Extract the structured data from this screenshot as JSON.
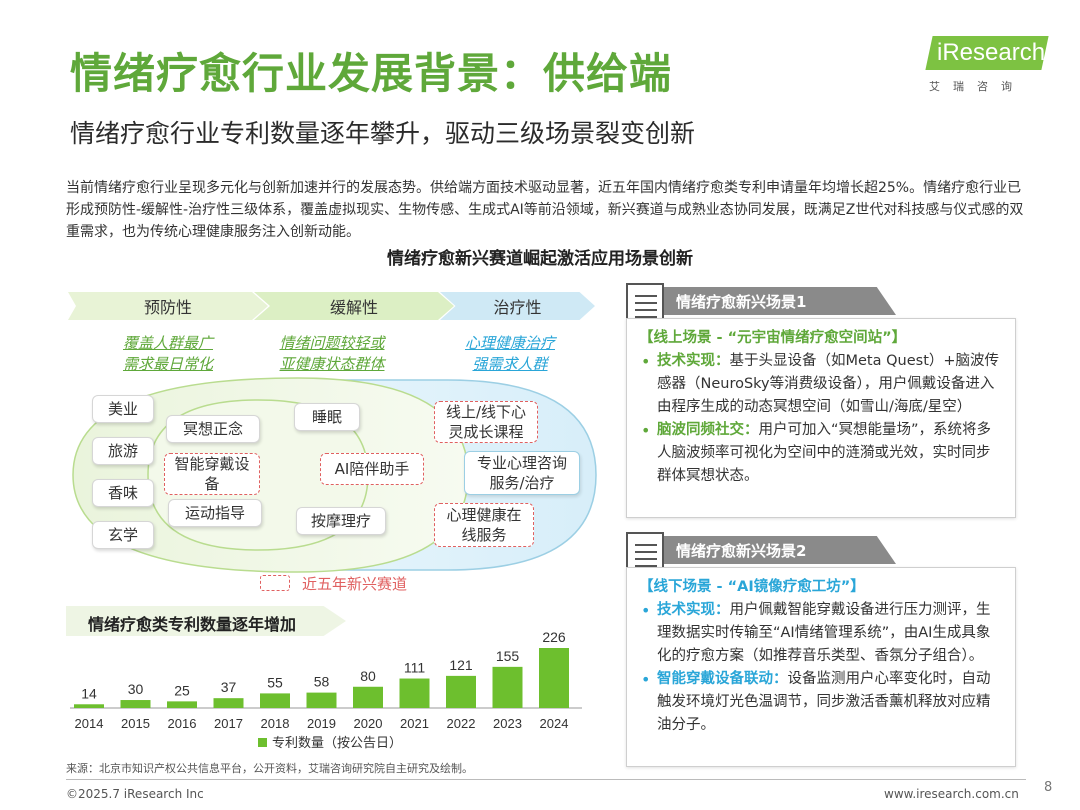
{
  "header": {
    "title": "情绪疗愈行业发展背景：供给端",
    "subtitle": "情绪疗愈行业专利数量逐年攀升，驱动三级场景裂变创新",
    "logo_text": "iResearch",
    "logo_sub": "艾瑞咨询"
  },
  "intro": {
    "paragraph": "当前情绪疗愈行业呈现多元化与创新加速并行的发展态势。供给端方面技术驱动显著，近五年国内情绪疗愈类专利申请量年均增长超25%。情绪疗愈行业已形成预防性-缓解性-治疗性三级体系，覆盖虚拟现实、生物传感、生成式AI等前沿领域，新兴赛道与成熟业态协同发展，既满足Z世代对科技感与仪式感的双重需求，也为传统心理健康服务注入创新动能。"
  },
  "diagram": {
    "heading": "情绪疗愈新兴赛道崛起激活应用场景创新",
    "phases": [
      {
        "name": "预防性",
        "desc1": "覆盖人群最广",
        "desc2": "需求最日常化"
      },
      {
        "name": "缓解性",
        "desc1": "情绪问题较轻或",
        "desc2": "亚健康状态群体"
      },
      {
        "name": "治疗性",
        "desc1": "心理健康治疗",
        "desc2": "强需求人群"
      }
    ],
    "outer_items": [
      "美业",
      "旅游",
      "香味",
      "玄学"
    ],
    "inner_items": [
      "冥想正念",
      "智能穿戴设备",
      "运动指导"
    ],
    "relief_items": [
      "睡眠",
      "AI陪伴助手",
      "按摩理疗"
    ],
    "therapy_items": [
      "线上/线下心灵成长课程",
      "专业心理咨询服务/治疗",
      "心理健康在线服务"
    ],
    "legend": "近五年新兴赛道",
    "colors": {
      "green": "#5fa83a",
      "blue": "#2aa6d8",
      "dashed_red": "#e06060",
      "bar": "#6dbf2e"
    }
  },
  "chart_data": {
    "type": "bar",
    "title": "情绪疗愈类专利数量逐年增加",
    "categories": [
      "2014",
      "2015",
      "2016",
      "2017",
      "2018",
      "2019",
      "2020",
      "2021",
      "2022",
      "2023",
      "2024"
    ],
    "series": [
      {
        "name": "专利数量（按公告日）",
        "values": [
          14,
          30,
          25,
          37,
          55,
          58,
          80,
          111,
          121,
          155,
          226
        ]
      }
    ],
    "xlabel": "",
    "ylabel": "",
    "legend": "bottom",
    "grid": false
  },
  "scenes": [
    {
      "tab": "情绪疗愈新兴场景1",
      "heading": "【线上场景 - “元宇宙情绪疗愈空间站”】",
      "b1_kw": "技术实现：",
      "b1_text": "基于头显设备（如Meta Quest）+脑波传感器（NeuroSky等消费级设备），用户佩戴设备进入由程序生成的动态冥想空间（如雪山/海底/星空）",
      "b2_kw": "脑波同频社交：",
      "b2_text": "用户可加入“冥想能量场”，系统将多人脑波频率可视化为空间中的涟漪或光效，实时同步群体冥想状态。"
    },
    {
      "tab": "情绪疗愈新兴场景2",
      "heading": "【线下场景 - “AI镜像疗愈工坊”】",
      "b1_kw": "技术实现：",
      "b1_text": "用户佩戴智能穿戴设备进行压力测评，生理数据实时传输至“AI情绪管理系统”，由AI生成具象化的疗愈方案（如推荐音乐类型、香氛分子组合）。",
      "b2_kw": "智能穿戴设备联动：",
      "b2_text": "设备监测用户心率变化时，自动触发环境灯光色温调节，同步激活香薰机释放对应精油分子。"
    }
  ],
  "footer": {
    "source": "来源：北京市知识产权公共信息平台，公开资料，艾瑞咨询研究院自主研究及绘制。",
    "copyright": "©2025.7 iResearch Inc",
    "site": "www.iresearch.com.cn",
    "page": "8"
  }
}
